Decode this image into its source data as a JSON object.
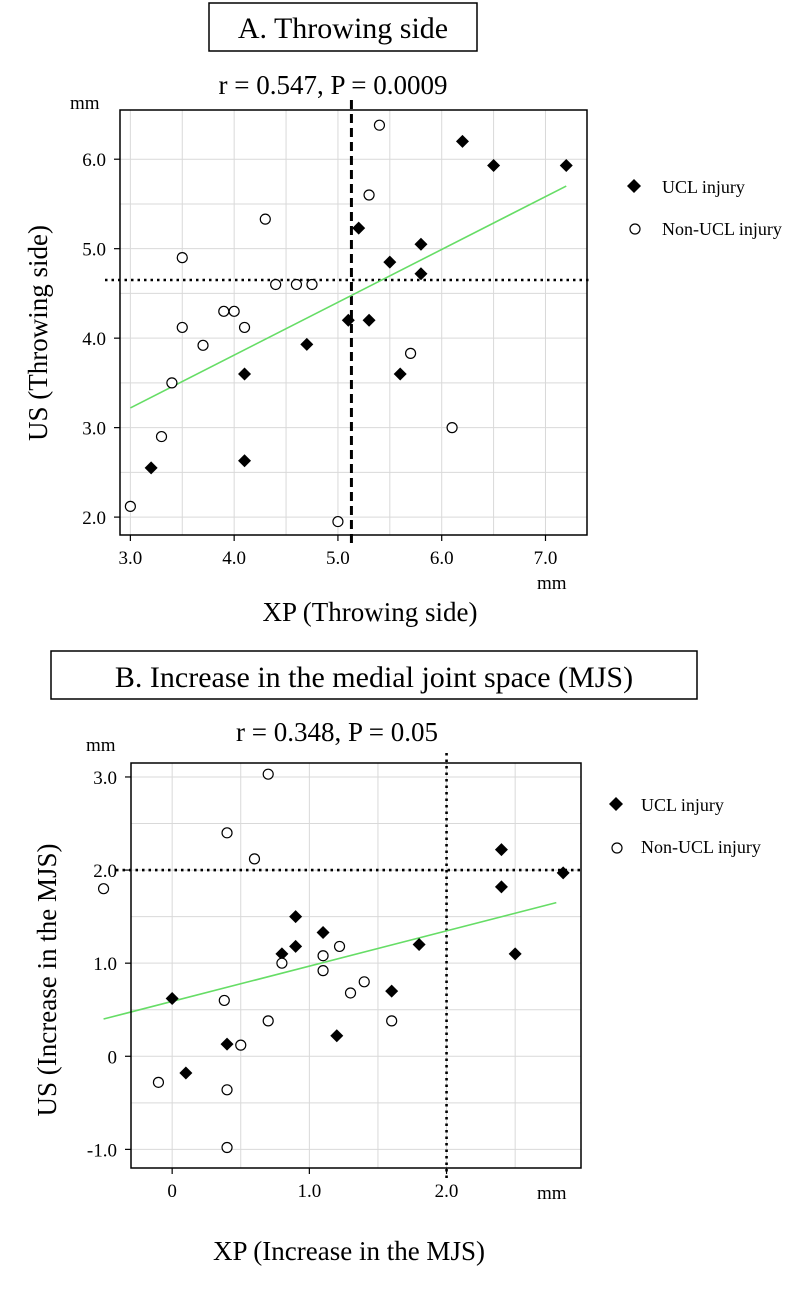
{
  "chart_data": [
    {
      "type": "scatter",
      "panel_title": "A. Throwing side",
      "stats": "r = 0.547, P = 0.0009",
      "xlabel": "XP (Throwing side)",
      "ylabel": "US (Throwing side)",
      "x_unit": "mm",
      "y_unit": "mm",
      "xlim": [
        2.9,
        7.4
      ],
      "ylim": [
        1.8,
        6.55
      ],
      "x_ticks": [
        {
          "v": 3.0,
          "label": "3.0"
        },
        {
          "v": 4.0,
          "label": "4.0"
        },
        {
          "v": 5.0,
          "label": "5.0"
        },
        {
          "v": 6.0,
          "label": "6.0"
        },
        {
          "v": 7.0,
          "label": "7.0"
        }
      ],
      "y_ticks": [
        {
          "v": 2.0,
          "label": "2.0"
        },
        {
          "v": 3.0,
          "label": "3.0"
        },
        {
          "v": 4.0,
          "label": "4.0"
        },
        {
          "v": 5.0,
          "label": "5.0"
        },
        {
          "v": 6.0,
          "label": "6.0"
        }
      ],
      "x_minor": [
        3.5,
        4.5,
        5.5,
        6.5
      ],
      "y_minor": [
        2.5,
        3.5,
        4.5,
        5.5
      ],
      "grid": true,
      "legend_position": "right",
      "series": [
        {
          "name": "UCL injury",
          "marker": "filled-diamond",
          "points": [
            [
              3.2,
              2.55
            ],
            [
              4.1,
              2.63
            ],
            [
              4.1,
              3.6
            ],
            [
              4.7,
              3.93
            ],
            [
              5.1,
              4.2
            ],
            [
              5.2,
              5.23
            ],
            [
              5.3,
              4.2
            ],
            [
              5.5,
              4.85
            ],
            [
              5.8,
              5.05
            ],
            [
              5.8,
              4.72
            ],
            [
              5.6,
              3.6
            ],
            [
              6.2,
              6.2
            ],
            [
              6.5,
              5.93
            ],
            [
              7.2,
              5.93
            ]
          ]
        },
        {
          "name": "Non-UCL injury",
          "marker": "open-circle",
          "points": [
            [
              3.0,
              2.12
            ],
            [
              3.3,
              2.9
            ],
            [
              3.4,
              3.5
            ],
            [
              3.5,
              4.12
            ],
            [
              3.5,
              4.9
            ],
            [
              3.7,
              3.92
            ],
            [
              3.9,
              4.3
            ],
            [
              4.0,
              4.3
            ],
            [
              4.1,
              4.12
            ],
            [
              4.3,
              5.33
            ],
            [
              4.4,
              4.6
            ],
            [
              4.6,
              4.6
            ],
            [
              4.75,
              4.6
            ],
            [
              5.0,
              1.95
            ],
            [
              5.3,
              5.6
            ],
            [
              5.4,
              6.38
            ],
            [
              5.7,
              3.83
            ],
            [
              6.1,
              3.0
            ]
          ]
        }
      ],
      "fit_line": {
        "x": [
          3.0,
          7.2
        ],
        "y": [
          3.22,
          5.7
        ],
        "color": "#66dd66"
      },
      "reference_lines": [
        {
          "axis": "x",
          "value": 5.13,
          "style": "dashed"
        },
        {
          "axis": "y",
          "value": 4.65,
          "style": "dotted"
        }
      ]
    },
    {
      "type": "scatter",
      "panel_title": "B. Increase in the medial joint space (MJS)",
      "stats": "r = 0.348, P = 0.05",
      "xlabel": "XP (Increase in the MJS)",
      "ylabel": "US (Increase in the MJS)",
      "x_unit": "mm",
      "y_unit": "mm",
      "xlim": [
        -0.3,
        2.98
      ],
      "ylim": [
        -1.2,
        3.15
      ],
      "x_ticks": [
        {
          "v": 0.0,
          "label": "0"
        },
        {
          "v": 1.0,
          "label": "1.0"
        },
        {
          "v": 2.0,
          "label": "2.0"
        }
      ],
      "y_ticks": [
        {
          "v": -1.0,
          "label": "-1.0"
        },
        {
          "v": 0.0,
          "label": "0"
        },
        {
          "v": 1.0,
          "label": "1.0"
        },
        {
          "v": 2.0,
          "label": "2.0"
        },
        {
          "v": 3.0,
          "label": "3.0"
        }
      ],
      "x_minor": [
        -0.5,
        0.5,
        1.5,
        2.5
      ],
      "y_minor": [
        -0.5,
        0.5,
        1.5,
        2.5
      ],
      "grid": true,
      "legend_position": "right",
      "series": [
        {
          "name": "UCL injury",
          "marker": "filled-diamond",
          "points": [
            [
              0.0,
              0.62
            ],
            [
              0.1,
              -0.18
            ],
            [
              0.4,
              0.13
            ],
            [
              0.8,
              1.1
            ],
            [
              0.9,
              1.18
            ],
            [
              0.9,
              1.5
            ],
            [
              1.1,
              1.33
            ],
            [
              1.2,
              0.22
            ],
            [
              1.6,
              0.7
            ],
            [
              1.8,
              1.2
            ],
            [
              2.4,
              2.22
            ],
            [
              2.4,
              1.82
            ],
            [
              2.5,
              1.1
            ],
            [
              2.85,
              1.97
            ]
          ]
        },
        {
          "name": "Non-UCL injury",
          "marker": "open-circle",
          "points": [
            [
              -0.5,
              1.8
            ],
            [
              -0.1,
              -0.28
            ],
            [
              0.38,
              0.6
            ],
            [
              0.4,
              -0.36
            ],
            [
              0.4,
              -0.98
            ],
            [
              0.4,
              2.4
            ],
            [
              0.5,
              0.12
            ],
            [
              0.6,
              2.12
            ],
            [
              0.7,
              3.03
            ],
            [
              0.7,
              0.38
            ],
            [
              0.8,
              1.0
            ],
            [
              1.1,
              1.08
            ],
            [
              1.1,
              0.92
            ],
            [
              1.22,
              1.18
            ],
            [
              1.3,
              0.68
            ],
            [
              1.4,
              0.8
            ],
            [
              1.6,
              0.38
            ]
          ]
        }
      ],
      "fit_line": {
        "x": [
          -0.5,
          2.8
        ],
        "y": [
          0.4,
          1.65
        ],
        "color": "#66dd66"
      },
      "reference_lines": [
        {
          "axis": "x",
          "value": 2.0,
          "style": "dotted"
        },
        {
          "axis": "y",
          "value": 2.0,
          "style": "dotted"
        }
      ]
    }
  ]
}
